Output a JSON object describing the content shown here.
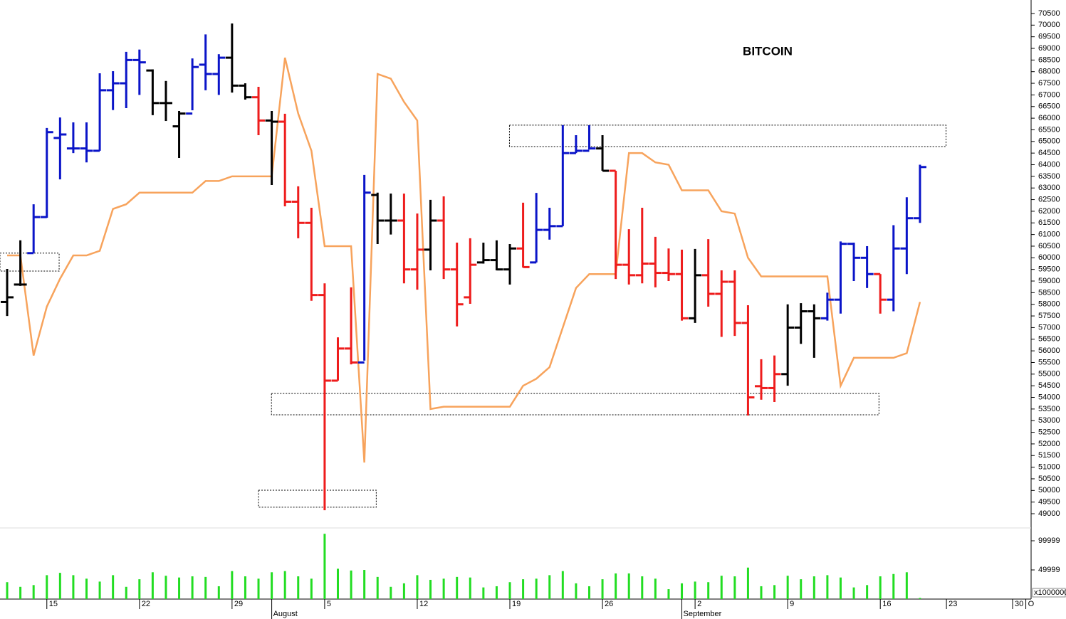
{
  "chart_data": {
    "type": "ohlc",
    "title": "BITCOIN",
    "x": [
      0,
      1,
      2,
      3,
      4,
      5,
      6,
      7,
      8,
      9,
      10,
      11,
      12,
      13,
      14,
      15,
      16,
      17,
      18,
      19,
      20,
      21,
      22,
      23,
      24,
      25,
      26,
      27,
      28,
      29,
      30,
      31,
      32,
      33,
      34,
      35,
      36,
      37,
      38,
      39,
      40,
      41,
      42,
      43,
      44,
      45,
      46,
      47,
      48,
      49,
      50,
      51,
      52,
      53,
      54,
      55,
      56,
      57,
      58,
      59,
      60,
      61,
      62,
      63,
      64,
      65,
      66,
      67,
      68,
      69
    ],
    "open": [
      58100,
      58850,
      60200,
      61750,
      65150,
      64700,
      64700,
      64600,
      67200,
      67500,
      68500,
      68050,
      66650,
      65650,
      66200,
      68300,
      67900,
      68600,
      67400,
      66900,
      65900,
      65850,
      62410,
      61500,
      58400,
      54720,
      56100,
      55500,
      62700,
      61600,
      61600,
      59500,
      60350,
      61600,
      59500,
      58300,
      59800,
      59900,
      59500,
      60400,
      59800,
      61200,
      61360,
      64500,
      64600,
      64700,
      63740,
      59700,
      59250,
      59750,
      59350,
      59300,
      57400,
      59250,
      58450,
      58970,
      57200,
      54480,
      54400,
      55000,
      57000,
      57700,
      57400,
      58200,
      60600,
      60000,
      59300,
      58200,
      60400,
      61700
    ],
    "high": [
      59520,
      60750,
      62300,
      65580,
      66030,
      65820,
      65820,
      67930,
      68020,
      68850,
      68950,
      68100,
      67600,
      66310,
      68570,
      69600,
      68750,
      70070,
      67500,
      67350,
      66310,
      66190,
      63070,
      62150,
      58900,
      56580,
      58730,
      63560,
      62800,
      62760,
      62760,
      61900,
      62490,
      62640,
      60650,
      60840,
      60650,
      60750,
      60590,
      62370,
      62790,
      62150,
      65700,
      65270,
      65700,
      65270,
      63740,
      61230,
      62150,
      60900,
      60400,
      60350,
      60380,
      60800,
      59460,
      59460,
      57960,
      55640,
      55800,
      58000,
      58050,
      58000,
      58500,
      60700,
      60650,
      60500,
      59300,
      61400,
      62600,
      64000
    ],
    "low": [
      57500,
      58790,
      60200,
      61720,
      63370,
      64500,
      64100,
      64600,
      66350,
      66430,
      67000,
      66130,
      65880,
      64290,
      66340,
      67200,
      67000,
      67100,
      66800,
      65270,
      63130,
      62210,
      60840,
      58150,
      49150,
      54720,
      55420,
      55580,
      60590,
      61000,
      58900,
      58630,
      59460,
      59090,
      57050,
      58020,
      59750,
      59460,
      58850,
      59580,
      59800,
      60780,
      61360,
      64500,
      64650,
      63740,
      59090,
      58850,
      58900,
      58730,
      59000,
      57300,
      57200,
      57900,
      56600,
      56640,
      53220,
      53900,
      53800,
      54500,
      56300,
      55700,
      57300,
      57600,
      59000,
      58700,
      57600,
      57700,
      59300,
      61500
    ],
    "close": [
      58300,
      58850,
      61750,
      65400,
      65300,
      64700,
      64600,
      67200,
      67500,
      68500,
      68400,
      66650,
      66650,
      66200,
      68200,
      67900,
      68600,
      67400,
      66900,
      65900,
      65850,
      62410,
      61500,
      58400,
      54720,
      56100,
      55500,
      62800,
      61600,
      61600,
      59500,
      60350,
      61600,
      59500,
      58000,
      59700,
      59900,
      59500,
      60400,
      59600,
      61200,
      61360,
      64500,
      64600,
      64700,
      63740,
      59700,
      59250,
      59750,
      59350,
      59300,
      57400,
      59250,
      58450,
      58970,
      57200,
      54000,
      54400,
      55000,
      57000,
      57700,
      57400,
      58200,
      60600,
      60000,
      59300,
      58200,
      60400,
      61700,
      63900
    ],
    "bar_colors": [
      "#000000",
      "#000000",
      "#0a14c8",
      "#0a14c8",
      "#0a14c8",
      "#0a14c8",
      "#0a14c8",
      "#0a14c8",
      "#0a14c8",
      "#0a14c8",
      "#0a14c8",
      "#000000",
      "#000000",
      "#000000",
      "#0a14c8",
      "#0a14c8",
      "#0a14c8",
      "#000000",
      "#000000",
      "#ee1c1c",
      "#000000",
      "#ee1c1c",
      "#ee1c1c",
      "#ee1c1c",
      "#ee1c1c",
      "#ee1c1c",
      "#ee1c1c",
      "#0a14c8",
      "#000000",
      "#000000",
      "#ee1c1c",
      "#ee1c1c",
      "#000000",
      "#ee1c1c",
      "#ee1c1c",
      "#ee1c1c",
      "#000000",
      "#000000",
      "#000000",
      "#ee1c1c",
      "#0a14c8",
      "#0a14c8",
      "#0a14c8",
      "#0a14c8",
      "#0a14c8",
      "#000000",
      "#ee1c1c",
      "#ee1c1c",
      "#ee1c1c",
      "#ee1c1c",
      "#ee1c1c",
      "#ee1c1c",
      "#000000",
      "#ee1c1c",
      "#ee1c1c",
      "#ee1c1c",
      "#ee1c1c",
      "#ee1c1c",
      "#ee1c1c",
      "#000000",
      "#000000",
      "#000000",
      "#0a14c8",
      "#0a14c8",
      "#0a14c8",
      "#0a14c8",
      "#ee1c1c",
      "#0a14c8",
      "#0a14c8",
      "#0a14c8"
    ],
    "overlay": {
      "color": "#f7a35c",
      "values": [
        60100,
        60100,
        55800,
        57900,
        59100,
        60100,
        60100,
        60300,
        62100,
        62300,
        62800,
        62800,
        62800,
        62800,
        62800,
        63300,
        63300,
        63500,
        63500,
        63500,
        63500,
        68600,
        66200,
        64600,
        60500,
        60500,
        60500,
        51200,
        67900,
        67700,
        66700,
        65900,
        53500,
        53600,
        53600,
        53600,
        53600,
        53600,
        53600,
        54500,
        54800,
        55300,
        57000,
        58700,
        59300,
        59300,
        59300,
        64500,
        64500,
        64100,
        64000,
        62900,
        62900,
        62900,
        62000,
        61900,
        60000,
        59200,
        59200,
        59200,
        59200,
        59200,
        59200,
        54500,
        55700,
        55700,
        55700,
        55700,
        55900,
        58100
      ]
    },
    "zones": [
      {
        "x0": -0.54,
        "x1": 3.93,
        "y0": 59430,
        "y1": 60200
      },
      {
        "x0": 37.97,
        "x1": 70.97,
        "y0": 64780,
        "y1": 65700
      },
      {
        "x0": 19.98,
        "x1": 65.9,
        "y0": 53250,
        "y1": 54170
      },
      {
        "x0": 19.0,
        "x1": 27.9,
        "y0": 49280,
        "y1": 50010
      }
    ],
    "xlim": [
      -0.54,
      77.4
    ],
    "xticks": [
      {
        "value": 3,
        "label": "15"
      },
      {
        "value": 10,
        "label": "22"
      },
      {
        "value": 17,
        "label": "29"
      },
      {
        "value": 24,
        "label": "5"
      },
      {
        "value": 31,
        "label": "12"
      },
      {
        "value": 38,
        "label": "19"
      },
      {
        "value": 45,
        "label": "26"
      },
      {
        "value": 52,
        "label": "2"
      },
      {
        "value": 59,
        "label": "9"
      },
      {
        "value": 66,
        "label": "16"
      },
      {
        "value": 71,
        "label": "23"
      },
      {
        "value": 76,
        "label": "30"
      },
      {
        "value": 77,
        "label": "O"
      }
    ],
    "months": [
      {
        "value": 20,
        "label": "August"
      },
      {
        "value": 51,
        "label": "September"
      }
    ],
    "ylim": [
      48450,
      71080
    ],
    "yticks": [
      49000,
      49500,
      50000,
      50500,
      51000,
      51500,
      52000,
      52500,
      53000,
      53500,
      54000,
      54500,
      55000,
      55500,
      56000,
      56500,
      57000,
      57500,
      58000,
      58500,
      59000,
      59500,
      60000,
      60500,
      61000,
      61500,
      62000,
      62500,
      63000,
      63500,
      64000,
      64500,
      65000,
      65500,
      66000,
      66500,
      67000,
      67500,
      68000,
      68500,
      69000,
      69500,
      70000,
      70500
    ],
    "volume": {
      "color": "#22dd22",
      "scale_label": "x1000000",
      "ylim": [
        0,
        122000
      ],
      "yticks": [
        49999,
        99999
      ],
      "values": [
        29000,
        21000,
        24000,
        41000,
        45000,
        41000,
        35000,
        30000,
        41000,
        21000,
        34000,
        46000,
        40000,
        37000,
        39000,
        38000,
        22000,
        48000,
        39000,
        35000,
        46000,
        48000,
        39000,
        35000,
        112000,
        52000,
        49000,
        50000,
        38000,
        21000,
        27000,
        41000,
        33000,
        35000,
        38000,
        37000,
        20000,
        22000,
        29000,
        34000,
        35000,
        41000,
        48000,
        27000,
        22000,
        34000,
        44000,
        44000,
        39000,
        35000,
        17000,
        27000,
        30000,
        29000,
        40000,
        39000,
        54000,
        22000,
        24000,
        40000,
        34000,
        39000,
        41000,
        37000,
        20000,
        24000,
        39000,
        43000,
        46000,
        2000
      ]
    }
  }
}
